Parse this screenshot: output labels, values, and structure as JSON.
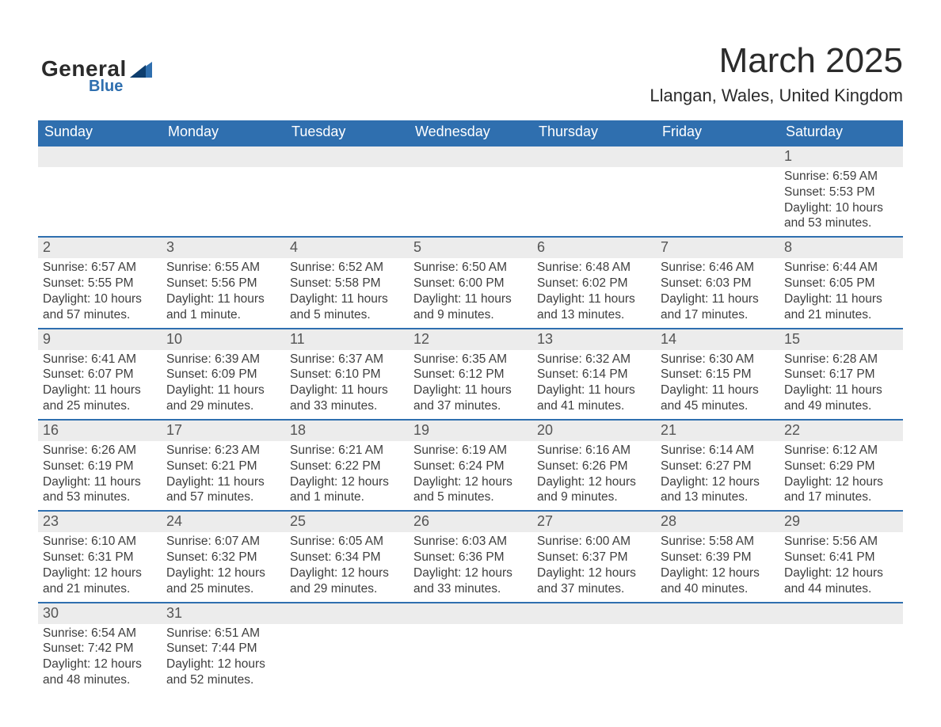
{
  "logo": {
    "general": "General",
    "blue": "Blue",
    "accent_color": "#2f6faf",
    "text_color": "#2b2b2b"
  },
  "header": {
    "title": "March 2025",
    "subtitle": "Llangan, Wales, United Kingdom"
  },
  "calendar": {
    "columns": [
      "Sunday",
      "Monday",
      "Tuesday",
      "Wednesday",
      "Thursday",
      "Friday",
      "Saturday"
    ],
    "header_bg": "#2f6faf",
    "header_fg": "#ffffff",
    "daybar_bg": "#ececec",
    "daybar_border": "#2f6faf",
    "text_color": "#3e3e3e",
    "weeks": [
      [
        null,
        null,
        null,
        null,
        null,
        null,
        {
          "day": "1",
          "sunrise": "Sunrise: 6:59 AM",
          "sunset": "Sunset: 5:53 PM",
          "daylight1": "Daylight: 10 hours",
          "daylight2": "and 53 minutes."
        }
      ],
      [
        {
          "day": "2",
          "sunrise": "Sunrise: 6:57 AM",
          "sunset": "Sunset: 5:55 PM",
          "daylight1": "Daylight: 10 hours",
          "daylight2": "and 57 minutes."
        },
        {
          "day": "3",
          "sunrise": "Sunrise: 6:55 AM",
          "sunset": "Sunset: 5:56 PM",
          "daylight1": "Daylight: 11 hours",
          "daylight2": "and 1 minute."
        },
        {
          "day": "4",
          "sunrise": "Sunrise: 6:52 AM",
          "sunset": "Sunset: 5:58 PM",
          "daylight1": "Daylight: 11 hours",
          "daylight2": "and 5 minutes."
        },
        {
          "day": "5",
          "sunrise": "Sunrise: 6:50 AM",
          "sunset": "Sunset: 6:00 PM",
          "daylight1": "Daylight: 11 hours",
          "daylight2": "and 9 minutes."
        },
        {
          "day": "6",
          "sunrise": "Sunrise: 6:48 AM",
          "sunset": "Sunset: 6:02 PM",
          "daylight1": "Daylight: 11 hours",
          "daylight2": "and 13 minutes."
        },
        {
          "day": "7",
          "sunrise": "Sunrise: 6:46 AM",
          "sunset": "Sunset: 6:03 PM",
          "daylight1": "Daylight: 11 hours",
          "daylight2": "and 17 minutes."
        },
        {
          "day": "8",
          "sunrise": "Sunrise: 6:44 AM",
          "sunset": "Sunset: 6:05 PM",
          "daylight1": "Daylight: 11 hours",
          "daylight2": "and 21 minutes."
        }
      ],
      [
        {
          "day": "9",
          "sunrise": "Sunrise: 6:41 AM",
          "sunset": "Sunset: 6:07 PM",
          "daylight1": "Daylight: 11 hours",
          "daylight2": "and 25 minutes."
        },
        {
          "day": "10",
          "sunrise": "Sunrise: 6:39 AM",
          "sunset": "Sunset: 6:09 PM",
          "daylight1": "Daylight: 11 hours",
          "daylight2": "and 29 minutes."
        },
        {
          "day": "11",
          "sunrise": "Sunrise: 6:37 AM",
          "sunset": "Sunset: 6:10 PM",
          "daylight1": "Daylight: 11 hours",
          "daylight2": "and 33 minutes."
        },
        {
          "day": "12",
          "sunrise": "Sunrise: 6:35 AM",
          "sunset": "Sunset: 6:12 PM",
          "daylight1": "Daylight: 11 hours",
          "daylight2": "and 37 minutes."
        },
        {
          "day": "13",
          "sunrise": "Sunrise: 6:32 AM",
          "sunset": "Sunset: 6:14 PM",
          "daylight1": "Daylight: 11 hours",
          "daylight2": "and 41 minutes."
        },
        {
          "day": "14",
          "sunrise": "Sunrise: 6:30 AM",
          "sunset": "Sunset: 6:15 PM",
          "daylight1": "Daylight: 11 hours",
          "daylight2": "and 45 minutes."
        },
        {
          "day": "15",
          "sunrise": "Sunrise: 6:28 AM",
          "sunset": "Sunset: 6:17 PM",
          "daylight1": "Daylight: 11 hours",
          "daylight2": "and 49 minutes."
        }
      ],
      [
        {
          "day": "16",
          "sunrise": "Sunrise: 6:26 AM",
          "sunset": "Sunset: 6:19 PM",
          "daylight1": "Daylight: 11 hours",
          "daylight2": "and 53 minutes."
        },
        {
          "day": "17",
          "sunrise": "Sunrise: 6:23 AM",
          "sunset": "Sunset: 6:21 PM",
          "daylight1": "Daylight: 11 hours",
          "daylight2": "and 57 minutes."
        },
        {
          "day": "18",
          "sunrise": "Sunrise: 6:21 AM",
          "sunset": "Sunset: 6:22 PM",
          "daylight1": "Daylight: 12 hours",
          "daylight2": "and 1 minute."
        },
        {
          "day": "19",
          "sunrise": "Sunrise: 6:19 AM",
          "sunset": "Sunset: 6:24 PM",
          "daylight1": "Daylight: 12 hours",
          "daylight2": "and 5 minutes."
        },
        {
          "day": "20",
          "sunrise": "Sunrise: 6:16 AM",
          "sunset": "Sunset: 6:26 PM",
          "daylight1": "Daylight: 12 hours",
          "daylight2": "and 9 minutes."
        },
        {
          "day": "21",
          "sunrise": "Sunrise: 6:14 AM",
          "sunset": "Sunset: 6:27 PM",
          "daylight1": "Daylight: 12 hours",
          "daylight2": "and 13 minutes."
        },
        {
          "day": "22",
          "sunrise": "Sunrise: 6:12 AM",
          "sunset": "Sunset: 6:29 PM",
          "daylight1": "Daylight: 12 hours",
          "daylight2": "and 17 minutes."
        }
      ],
      [
        {
          "day": "23",
          "sunrise": "Sunrise: 6:10 AM",
          "sunset": "Sunset: 6:31 PM",
          "daylight1": "Daylight: 12 hours",
          "daylight2": "and 21 minutes."
        },
        {
          "day": "24",
          "sunrise": "Sunrise: 6:07 AM",
          "sunset": "Sunset: 6:32 PM",
          "daylight1": "Daylight: 12 hours",
          "daylight2": "and 25 minutes."
        },
        {
          "day": "25",
          "sunrise": "Sunrise: 6:05 AM",
          "sunset": "Sunset: 6:34 PM",
          "daylight1": "Daylight: 12 hours",
          "daylight2": "and 29 minutes."
        },
        {
          "day": "26",
          "sunrise": "Sunrise: 6:03 AM",
          "sunset": "Sunset: 6:36 PM",
          "daylight1": "Daylight: 12 hours",
          "daylight2": "and 33 minutes."
        },
        {
          "day": "27",
          "sunrise": "Sunrise: 6:00 AM",
          "sunset": "Sunset: 6:37 PM",
          "daylight1": "Daylight: 12 hours",
          "daylight2": "and 37 minutes."
        },
        {
          "day": "28",
          "sunrise": "Sunrise: 5:58 AM",
          "sunset": "Sunset: 6:39 PM",
          "daylight1": "Daylight: 12 hours",
          "daylight2": "and 40 minutes."
        },
        {
          "day": "29",
          "sunrise": "Sunrise: 5:56 AM",
          "sunset": "Sunset: 6:41 PM",
          "daylight1": "Daylight: 12 hours",
          "daylight2": "and 44 minutes."
        }
      ],
      [
        {
          "day": "30",
          "sunrise": "Sunrise: 6:54 AM",
          "sunset": "Sunset: 7:42 PM",
          "daylight1": "Daylight: 12 hours",
          "daylight2": "and 48 minutes."
        },
        {
          "day": "31",
          "sunrise": "Sunrise: 6:51 AM",
          "sunset": "Sunset: 7:44 PM",
          "daylight1": "Daylight: 12 hours",
          "daylight2": "and 52 minutes."
        },
        null,
        null,
        null,
        null,
        null
      ]
    ]
  }
}
